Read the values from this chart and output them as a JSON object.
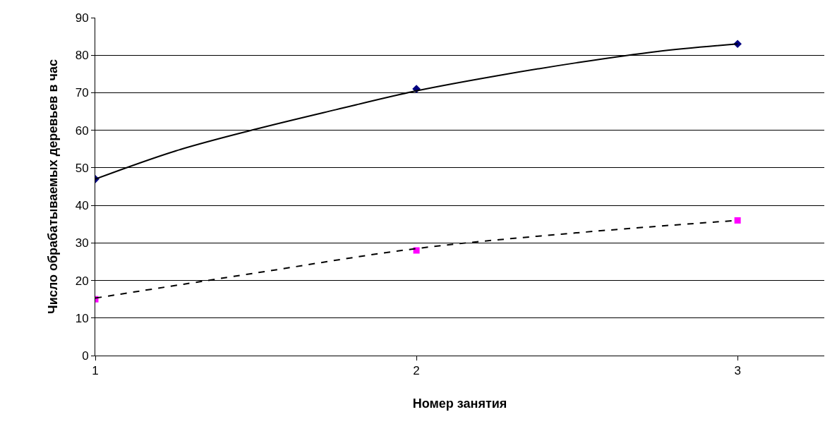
{
  "chart_data": {
    "type": "scatter",
    "xlabel": "Номер занятия",
    "ylabel": "Число обрабатываемых деревьев в час",
    "x": [
      1,
      2,
      3
    ],
    "series": [
      {
        "color": "#000080",
        "marker": "diamond",
        "values": [
          47,
          71,
          83
        ]
      },
      {
        "color": "#ff00ff",
        "marker": "square",
        "values": [
          15,
          28,
          36
        ]
      },
      {
        "type": "line",
        "color": "#000000",
        "line_style": "solid",
        "marker": "none",
        "x": [
          1,
          1.25,
          1.5,
          1.75,
          2,
          2.25,
          2.5,
          2.75,
          3
        ],
        "values": [
          47,
          54.5,
          60.3,
          65.5,
          70.5,
          74.5,
          78,
          81,
          83
        ]
      },
      {
        "type": "line",
        "color": "#000000",
        "line_style": "dashed",
        "marker": "none",
        "x": [
          1,
          1.5,
          2,
          2.5,
          3
        ],
        "values": [
          15.3,
          22,
          28.5,
          32.7,
          36
        ]
      }
    ],
    "xlim": [
      1,
      3.27
    ],
    "xticks": [
      1,
      2,
      3
    ],
    "ylim": [
      0,
      90
    ],
    "yticks": [
      0,
      10,
      20,
      30,
      40,
      50,
      60,
      70,
      80,
      90
    ],
    "grid": "y"
  }
}
